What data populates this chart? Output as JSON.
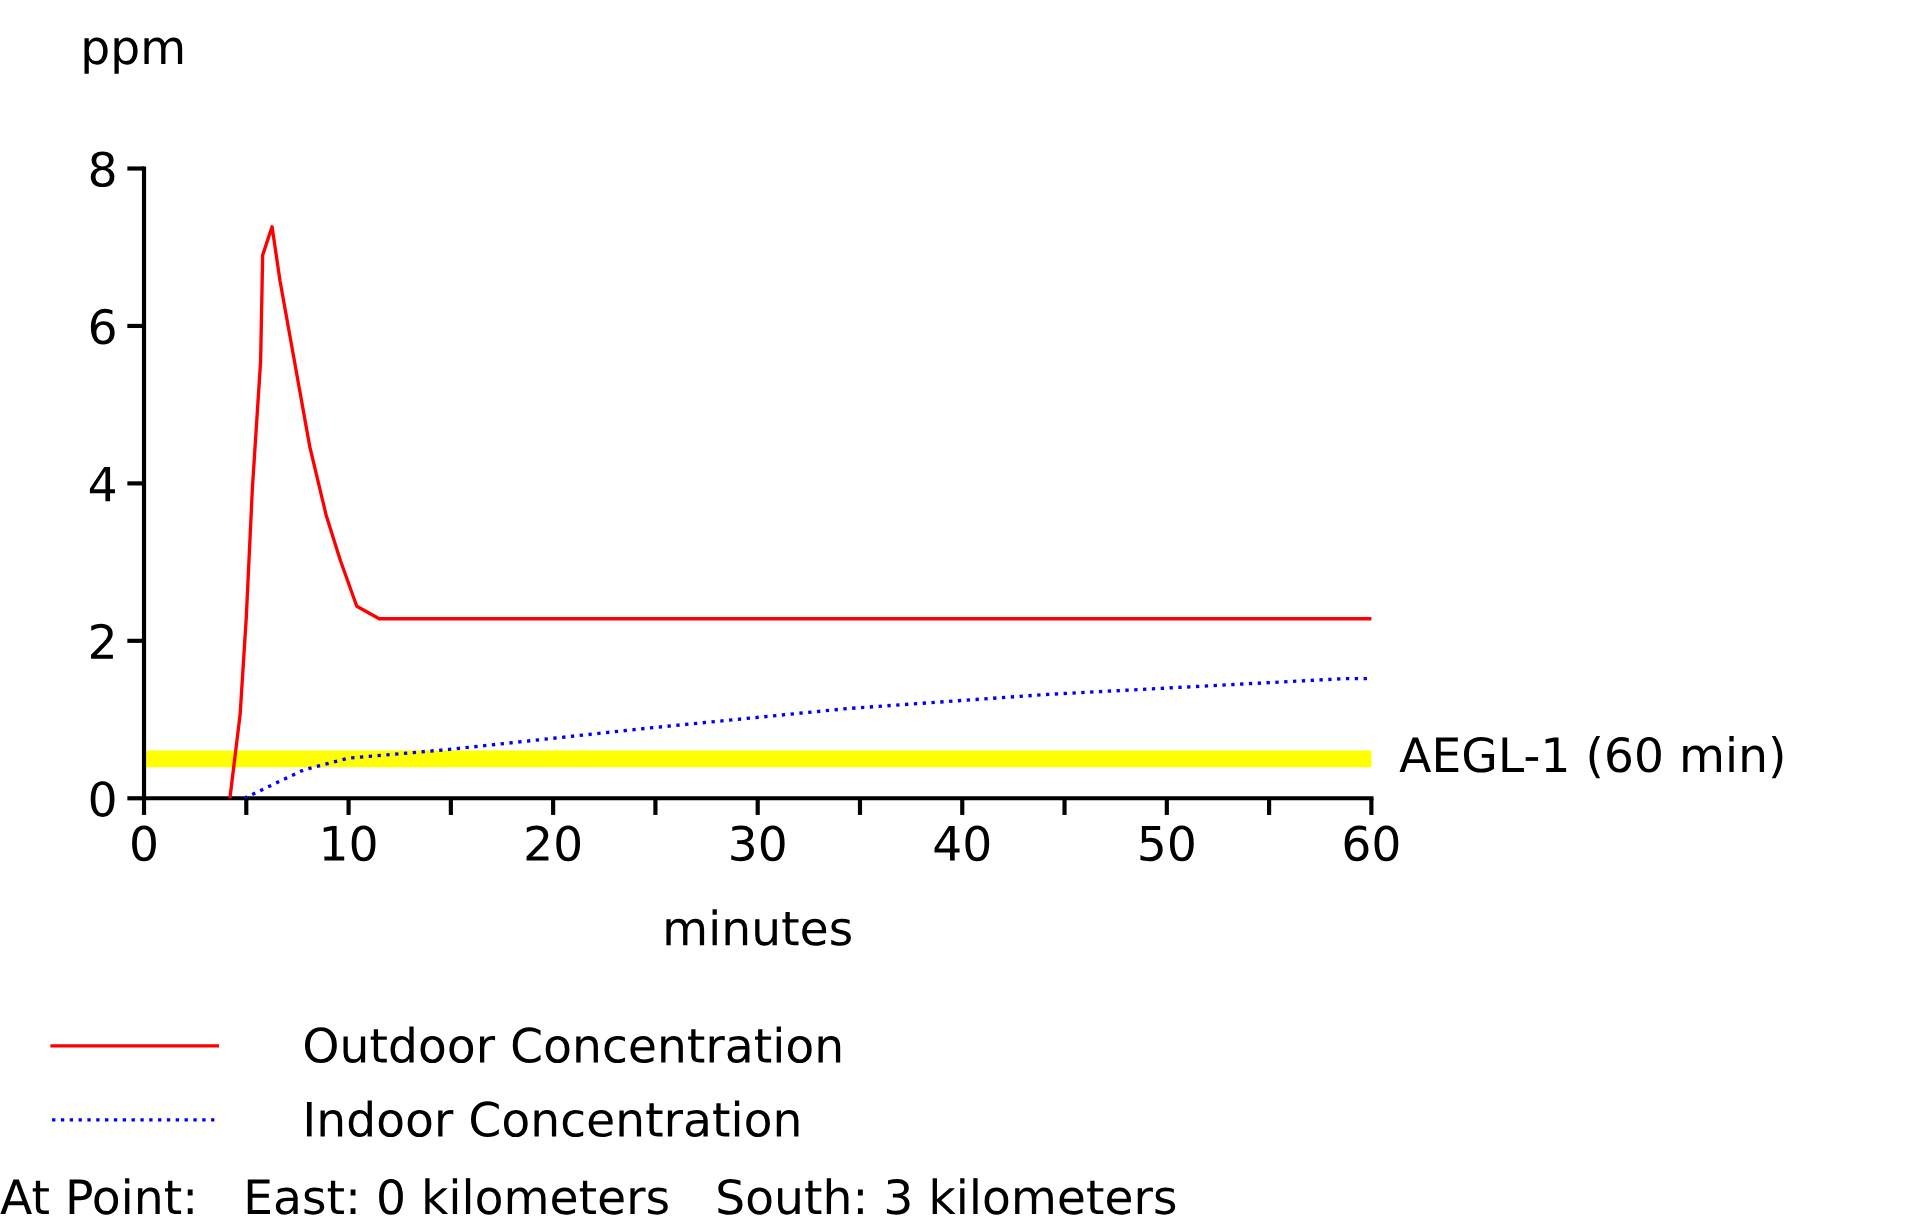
{
  "chart_data": {
    "type": "line",
    "xlabel": "minutes",
    "ylabel": "ppm",
    "series": [
      {
        "name": "Outdoor Concentration",
        "color": "#ff0000",
        "line_style": "solid",
        "x": [
          4.2,
          4.7,
          5.0,
          5.3,
          5.7,
          5.8,
          6.26,
          6.65,
          7.3,
          8.1,
          8.9,
          9.6,
          10.4,
          11.5,
          60
        ],
        "values": [
          0,
          1.07,
          2.3,
          3.95,
          5.55,
          6.9,
          7.26,
          6.57,
          5.63,
          4.47,
          3.6,
          3.02,
          2.44,
          2.28,
          2.28
        ]
      },
      {
        "name": "Indoor Concentration",
        "color": "#0000ff",
        "line_style": "dotted",
        "x": [
          4.9,
          7.8,
          10,
          14.9,
          24.6,
          34.4,
          44.2,
          58.7,
          60
        ],
        "values": [
          0,
          0.36,
          0.51,
          0.62,
          0.89,
          1.14,
          1.32,
          1.52,
          1.52
        ]
      }
    ],
    "xlim": [
      0,
      60
    ],
    "ylim": [
      0,
      8
    ],
    "xticks": [
      0,
      {
        "value": 5,
        "label": null
      },
      10,
      {
        "value": 15,
        "label": null
      },
      20,
      {
        "value": 25,
        "label": null
      },
      30,
      {
        "value": 35,
        "label": null
      },
      40,
      {
        "value": 45,
        "label": null
      },
      50,
      {
        "value": 55,
        "label": null
      },
      60
    ],
    "yticks": [
      0,
      2,
      4,
      6,
      8
    ],
    "ref_lines": [
      {
        "axis": "y",
        "value": 0.5,
        "label": "AEGL-1 (60 min)",
        "color": "#ffff00"
      }
    ],
    "grid": false,
    "legend": "bottom",
    "marker": "none",
    "annotations": [
      "At Point:   East: 0 kilometers   South: 3 kilometers"
    ]
  }
}
